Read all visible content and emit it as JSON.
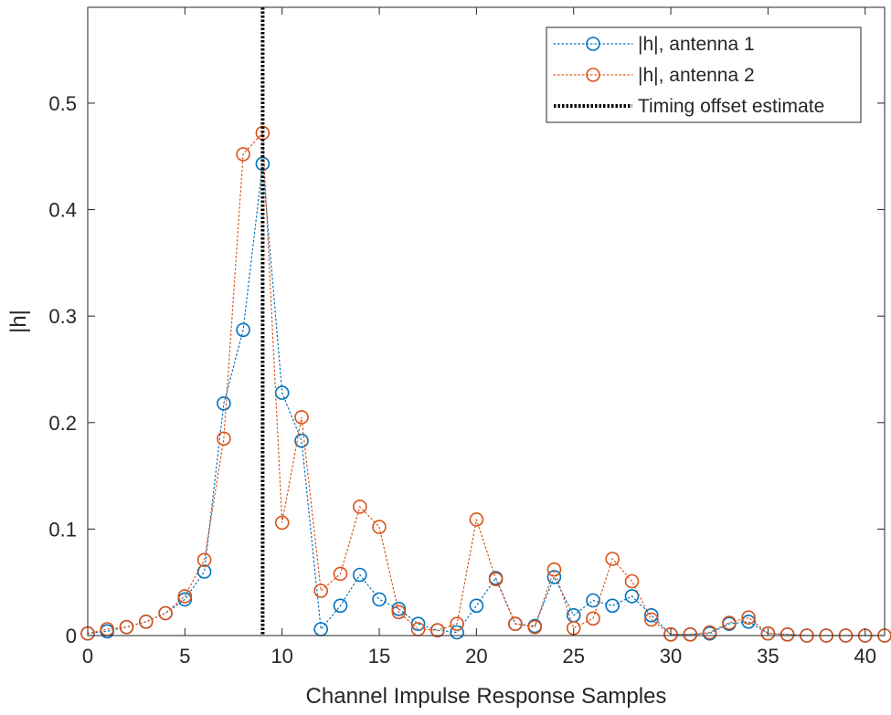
{
  "chart_data": {
    "type": "line",
    "xlabel": "Channel Impulse Response Samples",
    "ylabel": "|h|",
    "xlim": [
      0,
      41
    ],
    "ylim": [
      0,
      0.59
    ],
    "xticks": [
      0,
      5,
      10,
      15,
      20,
      25,
      30,
      35,
      40
    ],
    "yticks": [
      0,
      0.1,
      0.2,
      0.3,
      0.4,
      0.5
    ],
    "ytick_labels": [
      "0",
      "0.1",
      "0.2",
      "0.3",
      "0.4",
      "0.5"
    ],
    "grid": false,
    "legend_position": "top-right",
    "timing_offset_estimate": 9,
    "series": [
      {
        "name": "|h|, antenna 1",
        "color": "#0072BD",
        "marker": "circle",
        "line": "dotted",
        "x": [
          0,
          1,
          2,
          3,
          4,
          5,
          6,
          7,
          8,
          9,
          10,
          11,
          12,
          13,
          14,
          15,
          16,
          17,
          18,
          19,
          20,
          21,
          22,
          23,
          24,
          25,
          26,
          27,
          28,
          29,
          30,
          31,
          32,
          33,
          34,
          35,
          36,
          37,
          38,
          39,
          40,
          41
        ],
        "values": [
          0.002,
          0.004,
          0.008,
          0.013,
          0.021,
          0.034,
          0.06,
          0.218,
          0.287,
          0.443,
          0.228,
          0.183,
          0.006,
          0.028,
          0.057,
          0.034,
          0.025,
          0.011,
          0.005,
          0.003,
          0.028,
          0.054,
          0.011,
          0.009,
          0.055,
          0.019,
          0.033,
          0.028,
          0.037,
          0.019,
          0.001,
          0.001,
          0.002,
          0.011,
          0.013,
          0.002,
          0.001,
          0.0,
          0.0,
          0.0,
          0.0,
          0.0
        ]
      },
      {
        "name": "|h|, antenna 2",
        "color": "#D95319",
        "marker": "circle",
        "line": "dotted",
        "x": [
          0,
          1,
          2,
          3,
          4,
          5,
          6,
          7,
          8,
          9,
          10,
          11,
          12,
          13,
          14,
          15,
          16,
          17,
          18,
          19,
          20,
          21,
          22,
          23,
          24,
          25,
          26,
          27,
          28,
          29,
          30,
          31,
          32,
          33,
          34,
          35,
          36,
          37,
          38,
          39,
          40,
          41
        ],
        "values": [
          0.002,
          0.006,
          0.008,
          0.013,
          0.021,
          0.037,
          0.071,
          0.185,
          0.452,
          0.472,
          0.106,
          0.205,
          0.042,
          0.058,
          0.121,
          0.102,
          0.022,
          0.006,
          0.005,
          0.011,
          0.109,
          0.053,
          0.011,
          0.008,
          0.062,
          0.007,
          0.016,
          0.072,
          0.051,
          0.015,
          0.001,
          0.001,
          0.003,
          0.012,
          0.017,
          0.002,
          0.001,
          0.0,
          0.0,
          0.0,
          0.0,
          0.0
        ]
      }
    ],
    "legend": [
      {
        "label": "|h|, antenna 1",
        "style": "line-marker",
        "color": "#0072BD"
      },
      {
        "label": "|h|, antenna 2",
        "style": "line-marker",
        "color": "#D95319"
      },
      {
        "label": "Timing offset estimate",
        "style": "thick-dotted",
        "color": "#000000"
      }
    ]
  }
}
